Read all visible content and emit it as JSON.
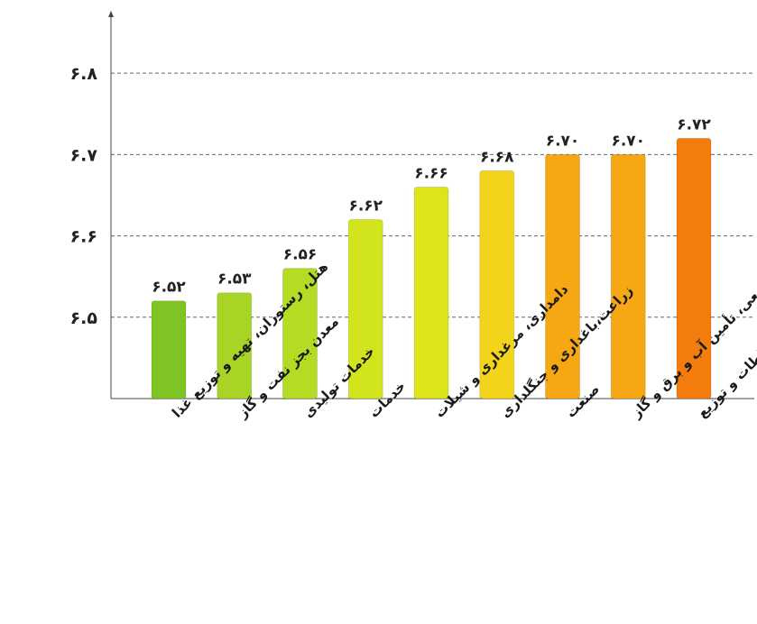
{
  "chart_data": {
    "type": "bar",
    "categories": [
      "هتل، رستوران، تهیه و توزیع غذا",
      "معدن بجز نفت و گاز",
      "خدمات تولیدی",
      "خدمات",
      "دامداری، مرغداری و شیلات",
      "زراعت،باغداری و جنگلداری",
      "صنعت",
      "نفت خام و گاز طبیعی، تأمین آب و برق و گاز",
      "ارتباطات و توزیع"
    ],
    "values": [
      6.52,
      6.53,
      6.56,
      6.62,
      6.66,
      6.68,
      6.7,
      6.7,
      6.72
    ],
    "value_labels": [
      "۶.۵۲",
      "۶.۵۳",
      "۶.۵۶",
      "۶.۶۲",
      "۶.۶۶",
      "۶.۶۸",
      "۶.۷۰",
      "۶.۷۰",
      "۶.۷۲"
    ],
    "yticks": [
      6.5,
      6.6,
      6.7,
      6.8
    ],
    "ytick_labels": [
      "۶.۵",
      "۶.۶",
      "۶.۷",
      "۶.۸"
    ],
    "ylim": [
      6.4,
      6.87
    ],
    "bar_colors": [
      "#7ec424",
      "#a8d426",
      "#b4dc24",
      "#d2e41e",
      "#dce41c",
      "#f2d51a",
      "#f5a814",
      "#f5a814",
      "#f47c0c"
    ],
    "grid": "horizontal dashed",
    "legend": "none"
  }
}
